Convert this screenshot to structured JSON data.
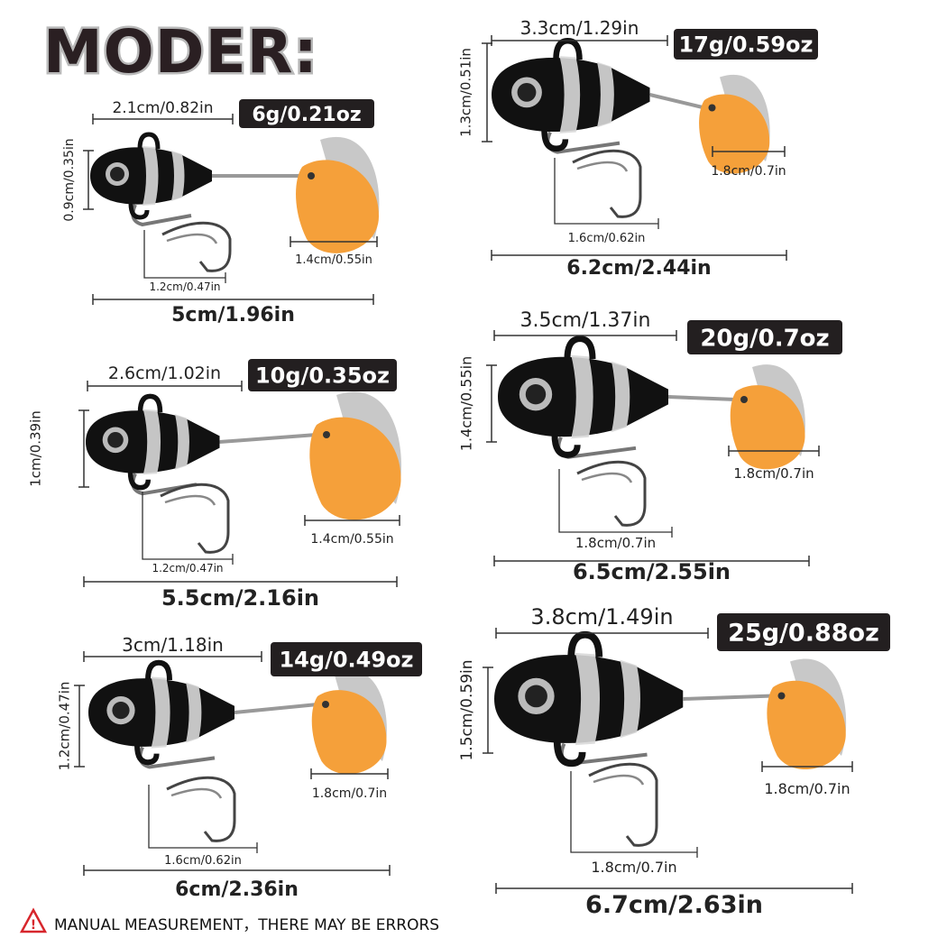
{
  "title": "MODER:",
  "warning": {
    "icon": "warning-triangle-icon",
    "text": "MANUAL MEASUREMENT，THERE MAY BE ERRORS",
    "color": "#d7262c"
  },
  "colors": {
    "body": "#111111",
    "stripe": "#d9d9d9",
    "blade_front": "#f5a03a",
    "blade_back": "#c8c8c8",
    "badge": "#231f20"
  },
  "lures": [
    {
      "weight": "6g/0.21oz",
      "head_length": "2.1cm/0.82in",
      "height": "0.9cm/0.35in",
      "hook": "1.2cm/0.47in",
      "blade": "1.4cm/0.55in",
      "total": "5cm/1.96in"
    },
    {
      "weight": "10g/0.35oz",
      "head_length": "2.6cm/1.02in",
      "height": "1cm/0.39in",
      "hook": "1.2cm/0.47in",
      "blade": "1.4cm/0.55in",
      "total": "5.5cm/2.16in"
    },
    {
      "weight": "14g/0.49oz",
      "head_length": "3cm/1.18in",
      "height": "1.2cm/0.47in",
      "hook": "1.6cm/0.62in",
      "blade": "1.8cm/0.7in",
      "total": "6cm/2.36in"
    },
    {
      "weight": "17g/0.59oz",
      "head_length": "3.3cm/1.29in",
      "height": "1.3cm/0.51in",
      "hook": "1.6cm/0.62in",
      "blade": "1.8cm/0.7in",
      "total": "6.2cm/2.44in"
    },
    {
      "weight": "20g/0.7oz",
      "head_length": "3.5cm/1.37in",
      "height": "1.4cm/0.55in",
      "hook": "1.8cm/0.7in",
      "blade": "1.8cm/0.7in",
      "total": "6.5cm/2.55in"
    },
    {
      "weight": "25g/0.88oz",
      "head_length": "3.8cm/1.49in",
      "height": "1.5cm/0.59in",
      "hook": "1.8cm/0.7in",
      "blade": "1.8cm/0.7in",
      "total": "6.7cm/2.63in"
    }
  ]
}
